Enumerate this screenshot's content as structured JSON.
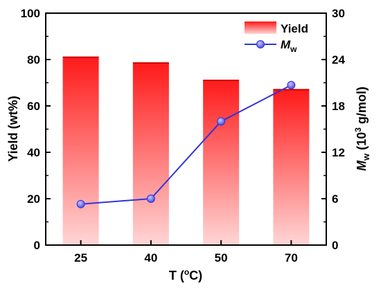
{
  "chart_data": {
    "type": "bar",
    "categories": [
      "25",
      "40",
      "50",
      "70"
    ],
    "xlabel": "T (°C)",
    "ylabel": "Yield (wt%)",
    "y2label": "M_w (10^3 g/mol)",
    "ylim": [
      0,
      100
    ],
    "y2lim": [
      0,
      30
    ],
    "yticks": [
      "0",
      "20",
      "40",
      "60",
      "80",
      "100"
    ],
    "y2ticks": [
      "0",
      "6",
      "12",
      "18",
      "24",
      "30"
    ],
    "series": [
      {
        "name": "Yield",
        "kind": "bar",
        "axis": "left",
        "values": [
          81,
          78.5,
          71,
          67
        ]
      },
      {
        "name": "M_w",
        "kind": "line",
        "axis": "right",
        "values": [
          5.3,
          6.0,
          16.0,
          20.7
        ]
      }
    ],
    "legend": {
      "position": "top-right",
      "yield_label": "Yield",
      "mw_label_main": "M",
      "mw_label_sub": "w"
    },
    "xlabel_parts": {
      "pre": "T (",
      "sup": "o",
      "post": "C)"
    },
    "y2label_parts": {
      "m": "M",
      "w": "w",
      "pre": " (10",
      "sup": "3",
      "post": " g/mol)"
    },
    "colors": {
      "bar_top": "#ff1a1a",
      "bar_bottom": "#ffd6d6",
      "line": "#3333dd",
      "marker": "#6e6ef0"
    }
  }
}
